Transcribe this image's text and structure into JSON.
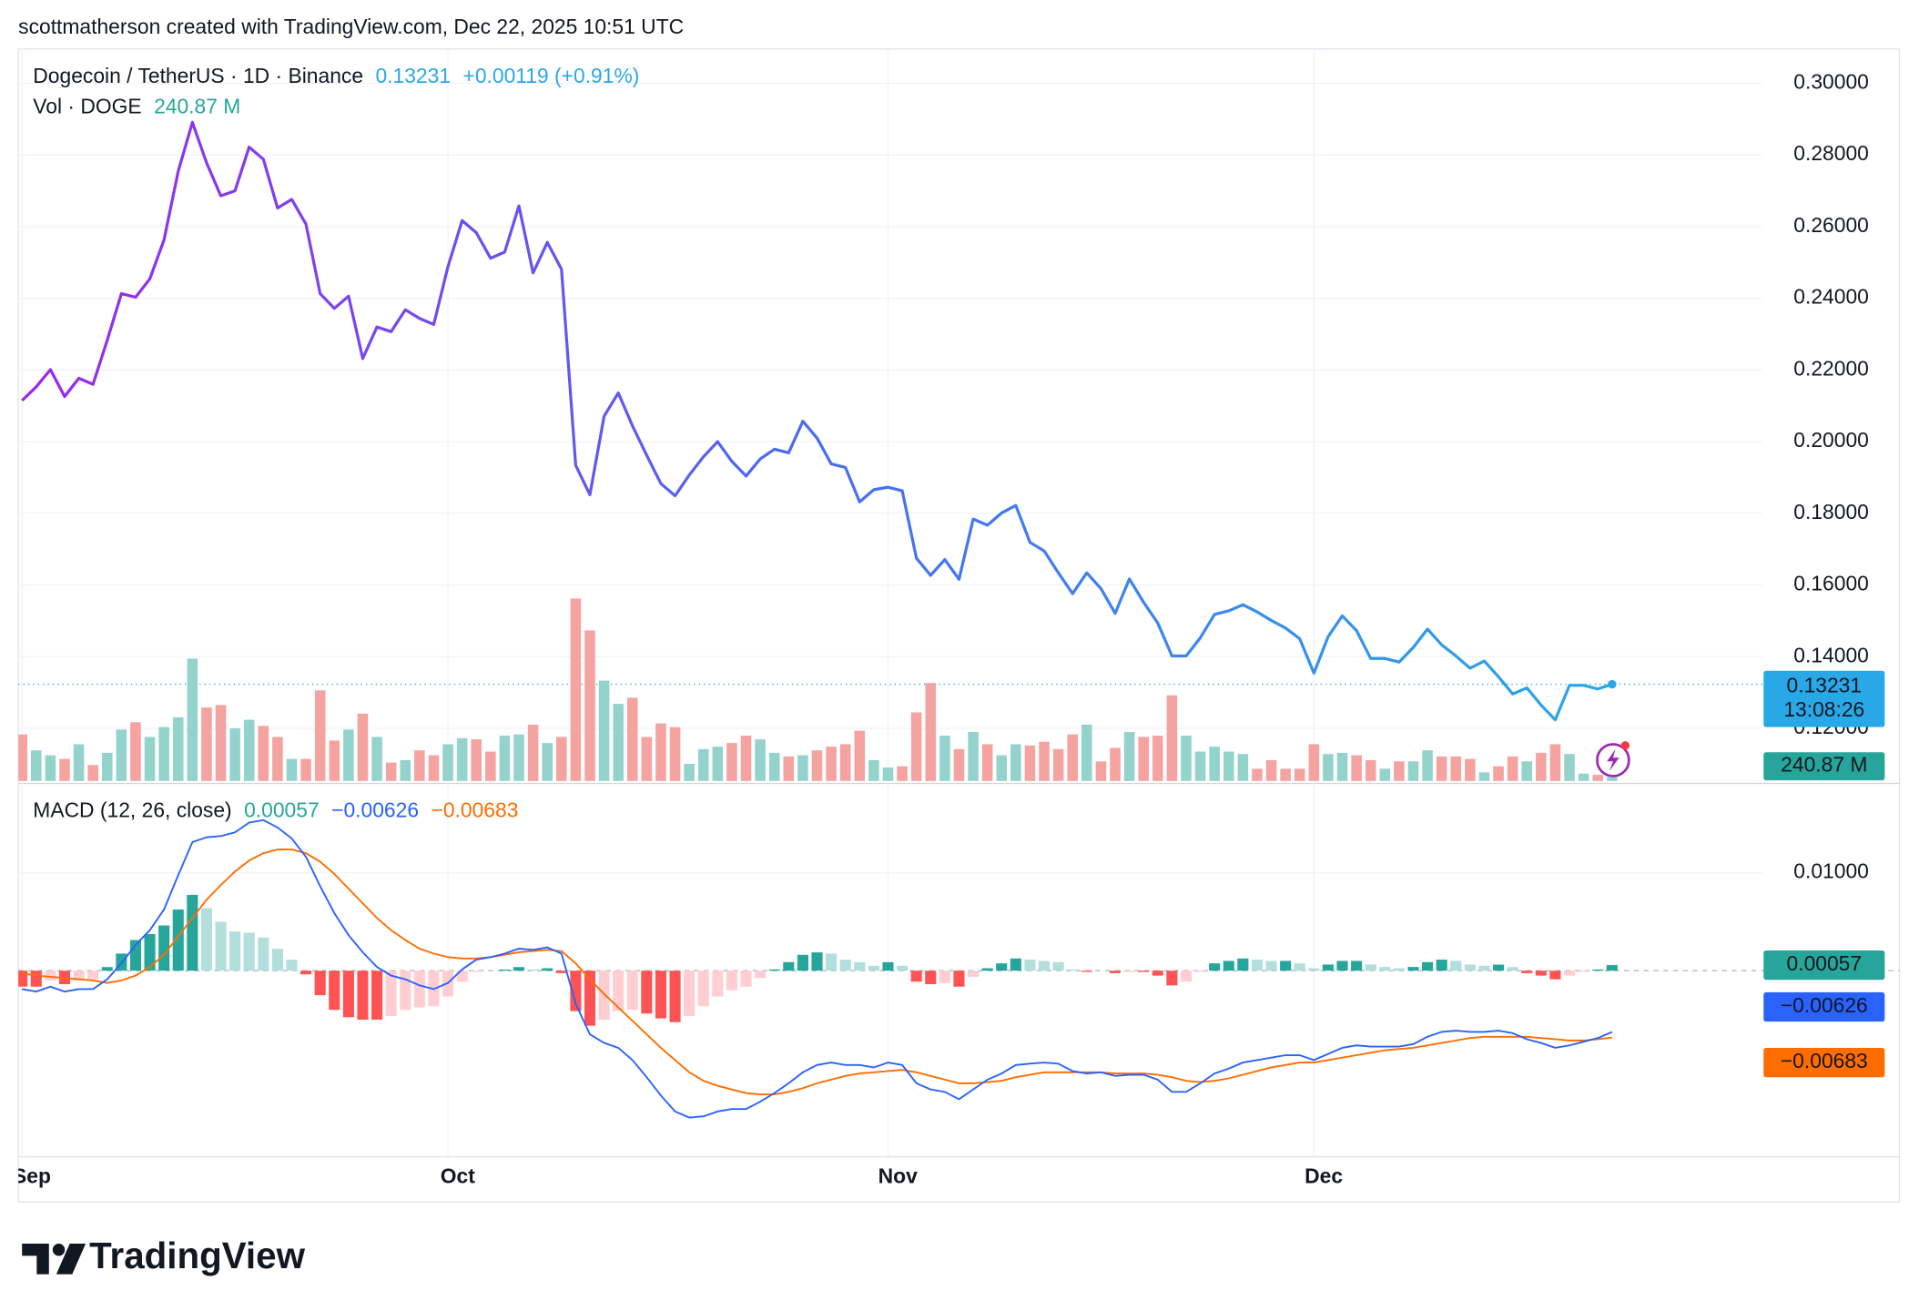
{
  "header": "scottmatherson created with TradingView.com, Dec 22, 2025 10:51 UTC",
  "brand": "TradingView",
  "chart_data": [
    {
      "type": "line",
      "title": "Dogecoin / TetherUS · 1D · Binance",
      "last_label": "0.13231",
      "change_label": "+0.00119 (+0.91%)",
      "countdown": "13:08:26",
      "categories": [
        "Sep",
        null,
        null,
        null,
        null,
        null,
        null,
        null,
        null,
        null,
        null,
        null,
        null,
        null,
        null,
        null,
        null,
        null,
        null,
        null,
        null,
        null,
        null,
        null,
        null,
        null,
        null,
        null,
        null,
        null,
        "Oct",
        null,
        null,
        null,
        null,
        null,
        null,
        null,
        null,
        null,
        null,
        null,
        null,
        null,
        null,
        null,
        null,
        null,
        null,
        null,
        null,
        null,
        null,
        null,
        null,
        null,
        null,
        null,
        null,
        null,
        null,
        "Nov",
        null,
        null,
        null,
        null,
        null,
        null,
        null,
        null,
        null,
        null,
        null,
        null,
        null,
        null,
        null,
        null,
        null,
        null,
        null,
        null,
        null,
        null,
        null,
        null,
        null,
        null,
        null,
        null,
        null,
        "Dec",
        null,
        null,
        null,
        null,
        null,
        null,
        null,
        null,
        null,
        null,
        null,
        null,
        null,
        null,
        null,
        null,
        null,
        null,
        null,
        null,
        null
      ],
      "values": [
        0.2115,
        0.2153,
        0.2201,
        0.2126,
        0.2177,
        0.216,
        0.2283,
        0.2413,
        0.2403,
        0.2454,
        0.2563,
        0.2754,
        0.2891,
        0.2778,
        0.2686,
        0.27,
        0.2822,
        0.2788,
        0.2652,
        0.2676,
        0.2607,
        0.2413,
        0.2372,
        0.2406,
        0.2232,
        0.232,
        0.2307,
        0.2368,
        0.2344,
        0.2327,
        0.2488,
        0.2617,
        0.2583,
        0.2512,
        0.2529,
        0.2658,
        0.2471,
        0.2556,
        0.2481,
        0.1934,
        0.1852,
        0.2071,
        0.2136,
        0.2044,
        0.1962,
        0.1883,
        0.1849,
        0.1907,
        0.1958,
        0.2,
        0.1945,
        0.1904,
        0.1952,
        0.1979,
        0.1969,
        0.2057,
        0.201,
        0.1938,
        0.1928,
        0.1832,
        0.1866,
        0.1873,
        0.1863,
        0.1675,
        0.1627,
        0.1671,
        0.1616,
        0.1784,
        0.1767,
        0.1801,
        0.1822,
        0.1719,
        0.1695,
        0.1634,
        0.1576,
        0.1634,
        0.159,
        0.1521,
        0.1617,
        0.1552,
        0.1494,
        0.1402,
        0.1402,
        0.1453,
        0.1518,
        0.1528,
        0.1545,
        0.1525,
        0.1501,
        0.148,
        0.145,
        0.1354,
        0.1456,
        0.1514,
        0.1473,
        0.1395,
        0.1395,
        0.1385,
        0.1426,
        0.1477,
        0.1433,
        0.1402,
        0.1368,
        0.1388,
        0.1344,
        0.1296,
        0.1313,
        0.1265,
        0.1224,
        0.132,
        0.132,
        0.131,
        0.13231
      ],
      "colors": [
        "#9c27f0",
        "#4a6cf0",
        "#29a8e8"
      ],
      "ylim": [
        0.10533,
        0.30956
      ],
      "yticks": [
        {
          "value": 0.12,
          "label": "0.12000"
        },
        {
          "value": 0.14,
          "label": "0.14000"
        },
        {
          "value": 0.16,
          "label": "0.16000"
        },
        {
          "value": 0.18,
          "label": "0.18000"
        },
        {
          "value": 0.2,
          "label": "0.20000"
        },
        {
          "value": 0.22,
          "label": "0.22000"
        },
        {
          "value": 0.24,
          "label": "0.24000"
        },
        {
          "value": 0.26,
          "label": "0.26000"
        },
        {
          "value": 0.28,
          "label": "0.28000"
        },
        {
          "value": 0.3,
          "label": "0.30000"
        }
      ],
      "grid": true
    },
    {
      "type": "bar",
      "title": "Vol · DOGE",
      "last_label": "240.87 M",
      "values": [
        3040,
        2000,
        1680,
        1440,
        2400,
        1040,
        1840,
        3360,
        3840,
        2880,
        3520,
        4160,
        8000,
        4800,
        4960,
        3440,
        4000,
        3600,
        2880,
        1440,
        1440,
        5920,
        2640,
        3360,
        4400,
        2880,
        1200,
        1360,
        2000,
        1680,
        2400,
        2800,
        2720,
        1920,
        2960,
        3040,
        3680,
        2480,
        2880,
        11920,
        9840,
        6560,
        5040,
        5440,
        2880,
        3760,
        3520,
        1120,
        2080,
        2240,
        2480,
        2960,
        2720,
        1840,
        1600,
        1680,
        2000,
        2240,
        2400,
        3280,
        1360,
        880,
        960,
        4480,
        6400,
        2960,
        2080,
        3200,
        2400,
        1680,
        2400,
        2320,
        2560,
        2080,
        3040,
        3680,
        1280,
        2160,
        3200,
        2880,
        2960,
        5600,
        2960,
        1920,
        2240,
        1920,
        1760,
        800,
        1360,
        800,
        800,
        2400,
        1760,
        1840,
        1680,
        1360,
        800,
        1280,
        1280,
        2000,
        1600,
        1600,
        1440,
        560,
        960,
        1600,
        1280,
        1840,
        2400,
        1760,
        480,
        400,
        240.87
      ],
      "up_color": "#93d3cc",
      "down_color": "#f5a3a1",
      "tag_color": "#26a69a",
      "ylim": [
        0,
        15000
      ]
    },
    {
      "type": "macd",
      "title": "MACD (12, 26, close)",
      "ylim": [
        -0.019,
        0.01813
      ],
      "yticks": [
        {
          "value": 0.01,
          "label": "0.01000"
        }
      ],
      "grid": true,
      "histogram": {
        "last_label": "0.00057",
        "colors": [
          "#26a69a",
          "#b2dfdb",
          "#ff5252",
          "#ffcdd2"
        ],
        "values": [
          -0.00163,
          -0.00163,
          -0.001,
          -0.00138,
          -0.001,
          -0.00088,
          0.00037,
          0.00175,
          0.00313,
          0.00375,
          0.00462,
          0.00625,
          0.00775,
          0.00638,
          0.005,
          0.004,
          0.00388,
          0.00338,
          0.00225,
          0.00112,
          -0.00037,
          -0.0025,
          -0.004,
          -0.00475,
          -0.005,
          -0.005,
          -0.00463,
          -0.00401,
          -0.00375,
          -0.00363,
          -0.00263,
          -0.00112,
          -0.00012,
          0,
          0.00012,
          0.00037,
          0.00013,
          0.00025,
          -0.00025,
          -0.00413,
          -0.00562,
          -0.005,
          -0.00413,
          -0.004,
          -0.00438,
          -0.00487,
          -0.00525,
          -0.00462,
          -0.00363,
          -0.00263,
          -0.002,
          -0.00163,
          -0.00075,
          0.00013,
          0.00088,
          0.00162,
          0.00187,
          0.00175,
          0.00112,
          0.00087,
          0.0005,
          0.00087,
          0.0005,
          -0.00112,
          -0.00138,
          -0.00125,
          -0.00163,
          -0.00063,
          0.00025,
          0.00075,
          0.00125,
          0.00113,
          0.001,
          0.00088,
          0.00013,
          -0.00012,
          0,
          -0.00025,
          -0.00013,
          -0.00013,
          -0.0005,
          -0.0015,
          -0.00113,
          -0.00012,
          0.00075,
          0.001,
          0.00125,
          0.00112,
          0.001,
          0.001,
          0.00075,
          0.00025,
          0.00063,
          0.001,
          0.001,
          0.00063,
          0.00038,
          0.00025,
          0.00038,
          0.00088,
          0.00113,
          0.001,
          0.00063,
          0.0005,
          0.00062,
          0.00037,
          -0.00025,
          -0.0005,
          -0.00088,
          -0.0005,
          -0.00012,
          0.00012,
          0.00057
        ]
      },
      "macd": {
        "last_label": "−0.00626",
        "color": "#2962ff",
        "values": [
          -0.00188,
          -0.00213,
          -0.00163,
          -0.00213,
          -0.00188,
          -0.00188,
          -0.00088,
          0.00075,
          0.00263,
          0.00413,
          0.00625,
          0.00975,
          0.01313,
          0.01363,
          0.01375,
          0.01413,
          0.01513,
          0.01538,
          0.01463,
          0.0135,
          0.01163,
          0.00863,
          0.00588,
          0.00363,
          0.00188,
          0.00038,
          -0.0005,
          -0.00088,
          -0.0015,
          -0.00188,
          -0.00125,
          0.00013,
          0.00113,
          0.00138,
          0.00175,
          0.00225,
          0.00213,
          0.00238,
          0.00175,
          -0.00338,
          -0.0065,
          -0.00738,
          -0.00788,
          -0.00913,
          -0.01088,
          -0.01275,
          -0.01438,
          -0.015,
          -0.01488,
          -0.01438,
          -0.01413,
          -0.01413,
          -0.01338,
          -0.0125,
          -0.0115,
          -0.01038,
          -0.00963,
          -0.00938,
          -0.00963,
          -0.00963,
          -0.00988,
          -0.00938,
          -0.00963,
          -0.0115,
          -0.01213,
          -0.01238,
          -0.01313,
          -0.01213,
          -0.01113,
          -0.0105,
          -0.00963,
          -0.0095,
          -0.00938,
          -0.0095,
          -0.01025,
          -0.0105,
          -0.01038,
          -0.01075,
          -0.01063,
          -0.01063,
          -0.01113,
          -0.01238,
          -0.01238,
          -0.0115,
          -0.0105,
          -0.01,
          -0.00938,
          -0.00913,
          -0.00888,
          -0.00863,
          -0.00863,
          -0.00913,
          -0.0085,
          -0.00788,
          -0.00763,
          -0.00775,
          -0.00775,
          -0.00775,
          -0.0075,
          -0.00675,
          -0.00625,
          -0.00613,
          -0.00625,
          -0.00625,
          -0.00613,
          -0.00638,
          -0.007,
          -0.00738,
          -0.00788,
          -0.00763,
          -0.00725,
          -0.00688,
          -0.00626
        ]
      },
      "signal": {
        "last_label": "−0.00683",
        "color": "#ff6d00",
        "values": [
          -0.00025,
          -0.0005,
          -0.00063,
          -0.00075,
          -0.00088,
          -0.001,
          -0.00125,
          -0.001,
          -0.0005,
          0.00038,
          0.00163,
          0.0035,
          0.00538,
          0.00725,
          0.00875,
          0.01013,
          0.01125,
          0.012,
          0.01238,
          0.01238,
          0.012,
          0.01113,
          0.00988,
          0.00838,
          0.00688,
          0.00538,
          0.00413,
          0.00313,
          0.00225,
          0.00175,
          0.00138,
          0.00125,
          0.00125,
          0.00138,
          0.00163,
          0.00188,
          0.002,
          0.00213,
          0.002,
          0.00075,
          -0.00088,
          -0.00238,
          -0.00375,
          -0.00513,
          -0.0065,
          -0.00788,
          -0.00913,
          -0.01038,
          -0.01125,
          -0.01175,
          -0.01213,
          -0.0125,
          -0.01263,
          -0.01263,
          -0.01238,
          -0.012,
          -0.0115,
          -0.01113,
          -0.01075,
          -0.0105,
          -0.01038,
          -0.01025,
          -0.01013,
          -0.01038,
          -0.01075,
          -0.01113,
          -0.0115,
          -0.0115,
          -0.01138,
          -0.01125,
          -0.01088,
          -0.01063,
          -0.01038,
          -0.01038,
          -0.01038,
          -0.01038,
          -0.01038,
          -0.0105,
          -0.0105,
          -0.0105,
          -0.01063,
          -0.01088,
          -0.01125,
          -0.01138,
          -0.01125,
          -0.011,
          -0.01063,
          -0.01025,
          -0.00988,
          -0.00963,
          -0.00938,
          -0.00938,
          -0.00913,
          -0.00888,
          -0.00863,
          -0.00838,
          -0.00813,
          -0.008,
          -0.00788,
          -0.00763,
          -0.00738,
          -0.00713,
          -0.00688,
          -0.00675,
          -0.00675,
          -0.00675,
          -0.00675,
          -0.00688,
          -0.007,
          -0.00713,
          -0.00713,
          -0.007,
          -0.00683
        ]
      }
    }
  ]
}
